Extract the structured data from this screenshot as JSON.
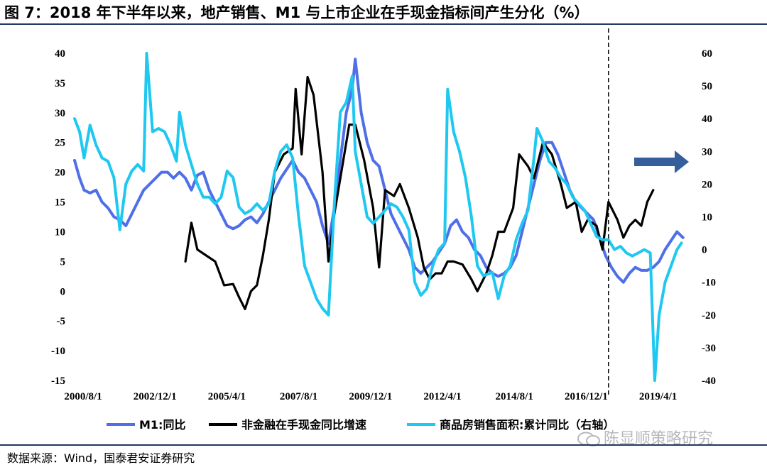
{
  "figure": {
    "title": "图 7：2018 年下半年以来，地产销售、M1 与上市企业在手现金指标间产生分化（%）",
    "source": "数据来源：Wind，国泰君安证券研究",
    "watermark": "陈显顺策略研究"
  },
  "chart_data": {
    "type": "line",
    "title": "2018 年下半年以来，地产销售、M1 与上市企业在手现金指标间产生分化（%）",
    "xlabel": "",
    "ylabel": "",
    "x_ticks": [
      "2000/8/1",
      "2002/12/1",
      "2005/4/1",
      "2007/8/1",
      "2009/12/1",
      "2012/4/1",
      "2014/8/1",
      "2016/12/1",
      "2019/4/1"
    ],
    "y_left": {
      "range": [
        -15,
        40
      ],
      "ticks": [
        -15,
        -10,
        -5,
        0,
        5,
        10,
        15,
        20,
        25,
        30,
        35,
        40
      ]
    },
    "y_right": {
      "range": [
        -40,
        60
      ],
      "ticks": [
        -40,
        -30,
        -20,
        -10,
        0,
        10,
        20,
        30,
        40,
        50,
        60
      ]
    },
    "divider_at": 2018.5,
    "annotation": {
      "type": "arrow",
      "direction": "right",
      "meaning": "右轴"
    },
    "legend": {
      "placement": "bottom"
    },
    "colors": {
      "m1": "#4f6fe8",
      "cash": "#000000",
      "sales": "#1ec8f0",
      "arrow": "#355f9a",
      "divider": "#000000"
    },
    "series": [
      {
        "name": "M1:同比",
        "axis": "left",
        "points": [
          [
            2000.58,
            22
          ],
          [
            2000.75,
            19
          ],
          [
            2000.9,
            17
          ],
          [
            2001.1,
            16.5
          ],
          [
            2001.3,
            17
          ],
          [
            2001.5,
            15
          ],
          [
            2001.7,
            14
          ],
          [
            2001.9,
            12.5
          ],
          [
            2002.1,
            12
          ],
          [
            2002.3,
            11
          ],
          [
            2002.5,
            13
          ],
          [
            2002.7,
            15
          ],
          [
            2002.9,
            17
          ],
          [
            2003.1,
            18
          ],
          [
            2003.3,
            19
          ],
          [
            2003.5,
            20
          ],
          [
            2003.7,
            20
          ],
          [
            2003.9,
            19
          ],
          [
            2004.1,
            20
          ],
          [
            2004.3,
            19
          ],
          [
            2004.5,
            17
          ],
          [
            2004.7,
            19.5
          ],
          [
            2004.9,
            20
          ],
          [
            2005.1,
            17
          ],
          [
            2005.3,
            15
          ],
          [
            2005.5,
            13
          ],
          [
            2005.7,
            11
          ],
          [
            2005.9,
            10.5
          ],
          [
            2006.1,
            11
          ],
          [
            2006.3,
            12
          ],
          [
            2006.5,
            12.5
          ],
          [
            2006.7,
            11.5
          ],
          [
            2006.9,
            13
          ],
          [
            2007.1,
            15
          ],
          [
            2007.3,
            17
          ],
          [
            2007.5,
            19
          ],
          [
            2007.7,
            20.5
          ],
          [
            2007.9,
            22
          ],
          [
            2008.1,
            20
          ],
          [
            2008.3,
            19
          ],
          [
            2008.5,
            17
          ],
          [
            2008.7,
            15
          ],
          [
            2008.9,
            11
          ],
          [
            2009.1,
            8
          ],
          [
            2009.3,
            14
          ],
          [
            2009.5,
            22
          ],
          [
            2009.7,
            30
          ],
          [
            2009.9,
            34
          ],
          [
            2010.0,
            39
          ],
          [
            2010.2,
            30
          ],
          [
            2010.4,
            25
          ],
          [
            2010.6,
            22
          ],
          [
            2010.8,
            21
          ],
          [
            2011.0,
            17
          ],
          [
            2011.2,
            13
          ],
          [
            2011.4,
            11
          ],
          [
            2011.6,
            9
          ],
          [
            2011.8,
            7
          ],
          [
            2012.0,
            4
          ],
          [
            2012.2,
            3
          ],
          [
            2012.4,
            4
          ],
          [
            2012.6,
            5
          ],
          [
            2012.8,
            6.5
          ],
          [
            2013.0,
            8
          ],
          [
            2013.2,
            11
          ],
          [
            2013.4,
            12
          ],
          [
            2013.6,
            10
          ],
          [
            2013.8,
            9
          ],
          [
            2014.0,
            7
          ],
          [
            2014.2,
            6
          ],
          [
            2014.4,
            4
          ],
          [
            2014.6,
            3
          ],
          [
            2014.8,
            2.5
          ],
          [
            2015.0,
            3
          ],
          [
            2015.2,
            4
          ],
          [
            2015.4,
            6
          ],
          [
            2015.6,
            10
          ],
          [
            2015.8,
            14
          ],
          [
            2016.0,
            18
          ],
          [
            2016.2,
            22
          ],
          [
            2016.4,
            25
          ],
          [
            2016.6,
            25
          ],
          [
            2016.8,
            23
          ],
          [
            2017.0,
            20
          ],
          [
            2017.2,
            17
          ],
          [
            2017.4,
            15
          ],
          [
            2017.6,
            14
          ],
          [
            2017.8,
            13
          ],
          [
            2018.0,
            12
          ],
          [
            2018.2,
            9
          ],
          [
            2018.4,
            6
          ],
          [
            2018.6,
            4
          ],
          [
            2018.8,
            2.5
          ],
          [
            2019.0,
            1.5
          ],
          [
            2019.2,
            3
          ],
          [
            2019.4,
            4
          ],
          [
            2019.6,
            3.5
          ],
          [
            2019.8,
            3.5
          ],
          [
            2020.0,
            4
          ],
          [
            2020.2,
            5
          ],
          [
            2020.4,
            7
          ],
          [
            2020.6,
            8.5
          ],
          [
            2020.8,
            10
          ],
          [
            2021.0,
            9
          ]
        ]
      },
      {
        "name": "非金融在手现金同比增速",
        "axis": "left",
        "points": [
          [
            2004.3,
            5
          ],
          [
            2004.5,
            11.5
          ],
          [
            2004.7,
            7
          ],
          [
            2005.0,
            6
          ],
          [
            2005.3,
            5
          ],
          [
            2005.6,
            1
          ],
          [
            2005.9,
            1.2
          ],
          [
            2006.1,
            -1
          ],
          [
            2006.3,
            -3
          ],
          [
            2006.5,
            0
          ],
          [
            2006.7,
            1
          ],
          [
            2006.9,
            6
          ],
          [
            2007.1,
            12
          ],
          [
            2007.3,
            20
          ],
          [
            2007.6,
            23
          ],
          [
            2007.9,
            24
          ],
          [
            2008.0,
            34
          ],
          [
            2008.2,
            23
          ],
          [
            2008.4,
            36
          ],
          [
            2008.6,
            33
          ],
          [
            2008.9,
            20
          ],
          [
            2009.1,
            5
          ],
          [
            2009.3,
            13
          ],
          [
            2009.6,
            22
          ],
          [
            2009.8,
            28
          ],
          [
            2010.0,
            28
          ],
          [
            2010.3,
            22
          ],
          [
            2010.6,
            14
          ],
          [
            2010.8,
            4
          ],
          [
            2011.0,
            17
          ],
          [
            2011.3,
            16
          ],
          [
            2011.5,
            18
          ],
          [
            2011.8,
            14
          ],
          [
            2012.1,
            9
          ],
          [
            2012.3,
            4
          ],
          [
            2012.5,
            2
          ],
          [
            2012.7,
            3
          ],
          [
            2012.9,
            3
          ],
          [
            2013.1,
            5
          ],
          [
            2013.3,
            5
          ],
          [
            2013.6,
            4.5
          ],
          [
            2013.9,
            2
          ],
          [
            2014.1,
            0
          ],
          [
            2014.4,
            3
          ],
          [
            2014.6,
            6
          ],
          [
            2014.8,
            10
          ],
          [
            2015.0,
            10
          ],
          [
            2015.3,
            14
          ],
          [
            2015.5,
            23
          ],
          [
            2015.8,
            21
          ],
          [
            2016.0,
            19
          ],
          [
            2016.3,
            25
          ],
          [
            2016.6,
            23
          ],
          [
            2016.9,
            18
          ],
          [
            2017.1,
            14
          ],
          [
            2017.4,
            15
          ],
          [
            2017.6,
            10
          ],
          [
            2017.8,
            12
          ],
          [
            2018.1,
            11
          ],
          [
            2018.3,
            7
          ],
          [
            2018.5,
            15
          ],
          [
            2018.8,
            12
          ],
          [
            2019.0,
            9
          ],
          [
            2019.2,
            11
          ],
          [
            2019.4,
            12
          ],
          [
            2019.6,
            11
          ],
          [
            2019.8,
            15
          ],
          [
            2020.0,
            17
          ]
        ]
      },
      {
        "name": "商品房销售面积:累计同比（右轴）",
        "axis": "right",
        "points": [
          [
            2000.58,
            40
          ],
          [
            2000.75,
            36
          ],
          [
            2000.9,
            28
          ],
          [
            2001.1,
            38
          ],
          [
            2001.3,
            32
          ],
          [
            2001.5,
            28
          ],
          [
            2001.7,
            27
          ],
          [
            2001.9,
            22
          ],
          [
            2002.1,
            6
          ],
          [
            2002.3,
            20
          ],
          [
            2002.5,
            24
          ],
          [
            2002.7,
            26
          ],
          [
            2002.9,
            24
          ],
          [
            2003.0,
            60
          ],
          [
            2003.2,
            36
          ],
          [
            2003.4,
            37
          ],
          [
            2003.6,
            36
          ],
          [
            2003.8,
            32
          ],
          [
            2004.0,
            27
          ],
          [
            2004.1,
            42
          ],
          [
            2004.3,
            32
          ],
          [
            2004.5,
            26
          ],
          [
            2004.7,
            20
          ],
          [
            2004.9,
            16
          ],
          [
            2005.1,
            16
          ],
          [
            2005.3,
            14
          ],
          [
            2005.5,
            16
          ],
          [
            2005.7,
            24
          ],
          [
            2005.9,
            22
          ],
          [
            2006.1,
            13
          ],
          [
            2006.3,
            11
          ],
          [
            2006.5,
            12
          ],
          [
            2006.7,
            14
          ],
          [
            2006.9,
            12
          ],
          [
            2007.1,
            14
          ],
          [
            2007.3,
            24
          ],
          [
            2007.5,
            30
          ],
          [
            2007.7,
            32
          ],
          [
            2007.9,
            28
          ],
          [
            2008.1,
            10
          ],
          [
            2008.3,
            -5
          ],
          [
            2008.5,
            -10
          ],
          [
            2008.7,
            -15
          ],
          [
            2008.9,
            -18
          ],
          [
            2009.1,
            -20
          ],
          [
            2009.3,
            14
          ],
          [
            2009.5,
            42
          ],
          [
            2009.7,
            45
          ],
          [
            2009.9,
            53
          ],
          [
            2010.0,
            30
          ],
          [
            2010.2,
            20
          ],
          [
            2010.4,
            10
          ],
          [
            2010.6,
            8
          ],
          [
            2010.8,
            10
          ],
          [
            2011.0,
            12
          ],
          [
            2011.2,
            14
          ],
          [
            2011.4,
            13
          ],
          [
            2011.6,
            10
          ],
          [
            2011.8,
            6
          ],
          [
            2012.0,
            -10
          ],
          [
            2012.2,
            -14
          ],
          [
            2012.4,
            -12
          ],
          [
            2012.6,
            -5
          ],
          [
            2012.8,
            0
          ],
          [
            2013.0,
            2
          ],
          [
            2013.1,
            49
          ],
          [
            2013.3,
            36
          ],
          [
            2013.5,
            30
          ],
          [
            2013.7,
            22
          ],
          [
            2013.9,
            10
          ],
          [
            2014.1,
            -5
          ],
          [
            2014.3,
            -8
          ],
          [
            2014.6,
            -7
          ],
          [
            2014.8,
            -15
          ],
          [
            2015.0,
            -8
          ],
          [
            2015.2,
            -5
          ],
          [
            2015.4,
            3
          ],
          [
            2015.6,
            8
          ],
          [
            2015.8,
            12
          ],
          [
            2016.0,
            28
          ],
          [
            2016.1,
            37
          ],
          [
            2016.3,
            33
          ],
          [
            2016.5,
            27
          ],
          [
            2016.7,
            25
          ],
          [
            2016.9,
            22
          ],
          [
            2017.1,
            20
          ],
          [
            2017.3,
            16
          ],
          [
            2017.5,
            14
          ],
          [
            2017.7,
            12
          ],
          [
            2017.9,
            8
          ],
          [
            2018.1,
            4
          ],
          [
            2018.3,
            3
          ],
          [
            2018.5,
            3
          ],
          [
            2018.7,
            0
          ],
          [
            2018.9,
            1
          ],
          [
            2019.1,
            -1
          ],
          [
            2019.3,
            -2
          ],
          [
            2019.5,
            -1
          ],
          [
            2019.7,
            0
          ],
          [
            2019.9,
            -1
          ],
          [
            2020.05,
            -40
          ],
          [
            2020.2,
            -20
          ],
          [
            2020.4,
            -10
          ],
          [
            2020.6,
            -5
          ],
          [
            2020.8,
            0
          ],
          [
            2020.95,
            2
          ]
        ]
      }
    ]
  }
}
